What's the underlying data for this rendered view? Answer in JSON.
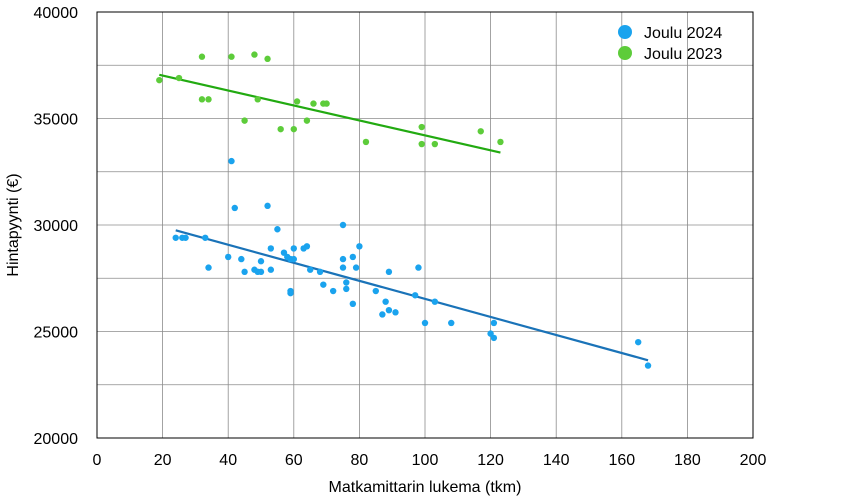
{
  "chart_data": {
    "type": "scatter",
    "title": "",
    "xlabel": "Matkamittarin lukema (tkm)",
    "ylabel": "Hintapyynti (€)",
    "xlim": [
      0,
      200
    ],
    "ylim": [
      20000,
      40000
    ],
    "xticks": [
      0,
      20,
      40,
      60,
      80,
      100,
      120,
      140,
      160,
      180,
      200
    ],
    "yticks": [
      20000,
      25000,
      30000,
      35000,
      40000
    ],
    "grid": true,
    "legend_position": "top-right",
    "series": [
      {
        "name": "Joulu 2024",
        "color": "#1aa3ee",
        "trend_color": "#1a73b8",
        "points": [
          [
            24,
            29400
          ],
          [
            26,
            29400
          ],
          [
            27,
            29400
          ],
          [
            33,
            29400
          ],
          [
            34,
            28000
          ],
          [
            40,
            28500
          ],
          [
            41,
            33000
          ],
          [
            42,
            30800
          ],
          [
            44,
            28400
          ],
          [
            45,
            27800
          ],
          [
            48,
            27900
          ],
          [
            50,
            28300
          ],
          [
            49,
            27800
          ],
          [
            50,
            27800
          ],
          [
            52,
            30900
          ],
          [
            53,
            27900
          ],
          [
            53,
            28900
          ],
          [
            55,
            29800
          ],
          [
            57,
            28700
          ],
          [
            58,
            28500
          ],
          [
            59,
            28400
          ],
          [
            60,
            28400
          ],
          [
            60,
            28900
          ],
          [
            59,
            26900
          ],
          [
            59,
            26800
          ],
          [
            63,
            28900
          ],
          [
            64,
            29000
          ],
          [
            65,
            27900
          ],
          [
            68,
            27800
          ],
          [
            69,
            27200
          ],
          [
            72,
            26900
          ],
          [
            75,
            30000
          ],
          [
            75,
            28400
          ],
          [
            75,
            28000
          ],
          [
            76,
            27300
          ],
          [
            76,
            27000
          ],
          [
            78,
            28500
          ],
          [
            78,
            26300
          ],
          [
            79,
            28000
          ],
          [
            80,
            29000
          ],
          [
            85,
            26900
          ],
          [
            87,
            25800
          ],
          [
            88,
            26400
          ],
          [
            89,
            27800
          ],
          [
            89,
            26000
          ],
          [
            91,
            25900
          ],
          [
            97,
            26700
          ],
          [
            98,
            28000
          ],
          [
            100,
            25400
          ],
          [
            103,
            26400
          ],
          [
            108,
            25400
          ],
          [
            120,
            24900
          ],
          [
            121,
            25400
          ],
          [
            121,
            24700
          ],
          [
            165,
            24500
          ],
          [
            168,
            23400
          ]
        ],
        "trend": {
          "from": [
            24,
            29750
          ],
          "to": [
            168,
            23650
          ]
        }
      },
      {
        "name": "Joulu 2023",
        "color": "#5dcc3a",
        "trend_color": "#22aa11",
        "points": [
          [
            19,
            36800
          ],
          [
            25,
            36900
          ],
          [
            32,
            37900
          ],
          [
            32,
            35900
          ],
          [
            34,
            35900
          ],
          [
            41,
            37900
          ],
          [
            45,
            34900
          ],
          [
            48,
            38000
          ],
          [
            49,
            35900
          ],
          [
            52,
            37800
          ],
          [
            56,
            34500
          ],
          [
            60,
            34500
          ],
          [
            61,
            35800
          ],
          [
            64,
            34900
          ],
          [
            66,
            35700
          ],
          [
            69,
            35700
          ],
          [
            70,
            35700
          ],
          [
            82,
            33900
          ],
          [
            99,
            34600
          ],
          [
            99,
            33800
          ],
          [
            103,
            33800
          ],
          [
            117,
            34400
          ],
          [
            123,
            33900
          ]
        ],
        "trend": {
          "from": [
            19,
            37050
          ],
          "to": [
            123,
            33400
          ]
        }
      }
    ]
  }
}
